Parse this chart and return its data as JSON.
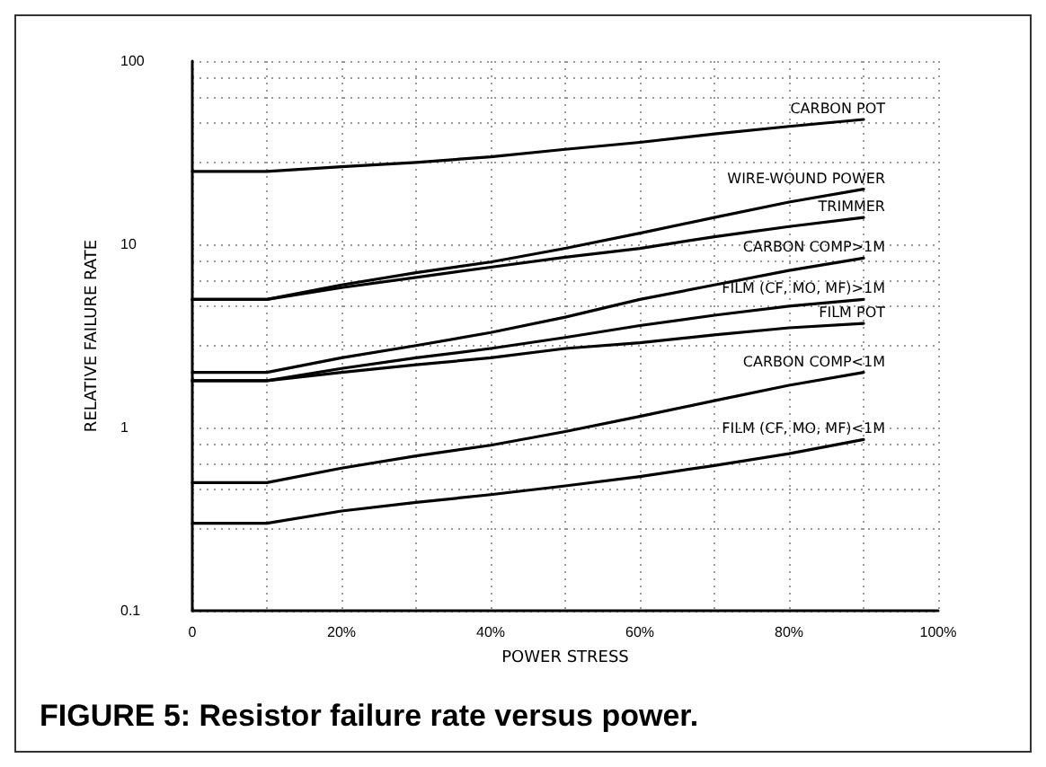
{
  "chart_data": {
    "type": "line",
    "title": "FIGURE 5: Resistor failure rate versus power.",
    "xlabel": "POWER STRESS",
    "ylabel": "RELATIVE FAILURE RATE",
    "x": [
      0,
      10,
      20,
      30,
      40,
      50,
      60,
      70,
      80,
      90
    ],
    "series": [
      {
        "name": "CARBON POT",
        "color": "#000000",
        "values": [
          25,
          25,
          26.5,
          28,
          30,
          33,
          36,
          40,
          44,
          48
        ]
      },
      {
        "name": "WIRE-WOUND POWER",
        "color": "#000000",
        "values": [
          5,
          5,
          6,
          7,
          8,
          9.5,
          11.5,
          14,
          17,
          20
        ]
      },
      {
        "name": "TRIMMER",
        "color": "#000000",
        "values": [
          5,
          5,
          5.8,
          6.6,
          7.5,
          8.5,
          9.5,
          11,
          12.5,
          14
        ]
      },
      {
        "name": "CARBON COMP>1M",
        "color": "#000000",
        "values": [
          2,
          2,
          2.4,
          2.8,
          3.3,
          4,
          5,
          6,
          7.2,
          8.4
        ]
      },
      {
        "name": "FILM (CF, MO, MF)>1M",
        "color": "#000000",
        "values": [
          1.8,
          1.8,
          2.1,
          2.4,
          2.7,
          3.1,
          3.6,
          4.1,
          4.6,
          5
        ]
      },
      {
        "name": "FILM POT",
        "color": "#000000",
        "values": [
          1.8,
          1.8,
          2,
          2.2,
          2.4,
          2.7,
          2.9,
          3.2,
          3.5,
          3.7
        ]
      },
      {
        "name": "CARBON COMP<1M",
        "color": "#000000",
        "values": [
          0.5,
          0.5,
          0.6,
          0.7,
          0.8,
          0.95,
          1.15,
          1.4,
          1.7,
          2
        ]
      },
      {
        "name": "FILM (CF, MO, MF)<1M",
        "color": "#000000",
        "values": [
          0.3,
          0.3,
          0.35,
          0.39,
          0.43,
          0.48,
          0.54,
          0.62,
          0.72,
          0.86
        ]
      }
    ],
    "xlim": [
      0,
      100
    ],
    "xticks": [
      0,
      {
        "value": 20,
        "label": "20%"
      },
      {
        "value": 40,
        "label": "40%"
      },
      {
        "value": 60,
        "label": "60%"
      },
      {
        "value": 80,
        "label": "80%"
      },
      {
        "value": 100,
        "label": "100%"
      }
    ],
    "ylim": [
      0.1,
      100
    ],
    "yticks": [
      0.1,
      1,
      10,
      100
    ],
    "log": true,
    "grid": true,
    "legend": false,
    "marker": "none",
    "line_style": "solid"
  }
}
